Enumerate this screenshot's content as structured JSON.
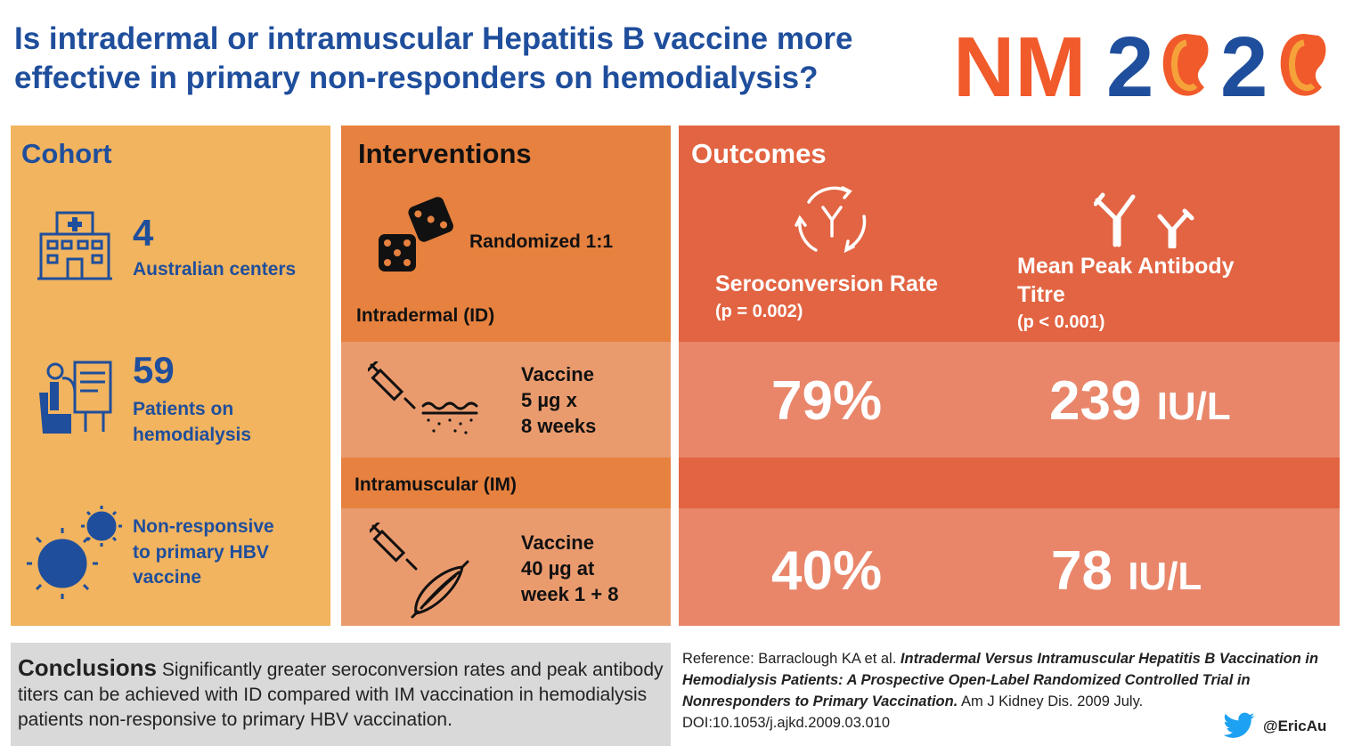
{
  "header": {
    "title_line1": "Is intradermal or intramuscular Hepatitis B vaccine more",
    "title_line2": "effective in primary non-responders on hemodialysis?",
    "logo_text": "NM2020"
  },
  "colors": {
    "title_blue": "#1f4e9c",
    "cohort_bg": "#f2b45e",
    "interventions_bg": "#e6813f",
    "outcomes_bg": "#e26442",
    "logo_orange": "#f15a2b"
  },
  "cohort": {
    "heading": "Cohort",
    "items": [
      {
        "icon": "hospital-icon",
        "number": "4",
        "label": "Australian centers"
      },
      {
        "icon": "hemodialysis-patient-icon",
        "number": "59",
        "label_line1": "Patients on",
        "label_line2": "hemodialysis"
      },
      {
        "icon": "virus-icon",
        "label_line1": "Non-responsive",
        "label_line2": "to primary HBV",
        "label_line3": "vaccine"
      }
    ]
  },
  "interventions": {
    "heading": "Interventions",
    "randomization": "Randomized 1:1",
    "id_label": "Intradermal (ID)",
    "id_vaccine": {
      "line1": "Vaccine",
      "line2": "5 µg x",
      "line3": "8 weeks"
    },
    "im_label": "Intramuscular (IM)",
    "im_vaccine": {
      "line1": "Vaccine",
      "line2": "40 µg at",
      "line3": "week 1 + 8"
    }
  },
  "outcomes": {
    "heading": "Outcomes",
    "seroconversion": {
      "title": "Seroconversion Rate",
      "p": "(p = 0.002)",
      "id_value": "79%",
      "im_value": "40%"
    },
    "titre": {
      "title_line1": "Mean Peak Antibody",
      "title_line2": "Titre",
      "p": "(p < 0.001)",
      "id_value": "239",
      "im_value": "78",
      "unit": "IU/L"
    }
  },
  "conclusions": {
    "heading": "Conclusions",
    "text": "Significantly greater seroconversion rates and peak antibody titers can be achieved with ID compared with IM vaccination in hemodialysis patients non-responsive to primary HBV vaccination."
  },
  "reference": {
    "prefix": "Reference: Barraclough KA et al.",
    "title": "Intradermal Versus Intramuscular Hepatitis B Vaccination in Hemodialysis Patients: A Prospective Open-Label Randomized Controlled Trial in Nonresponders to Primary Vaccination.",
    "suffix": "Am J Kidney Dis. 2009 July. DOI:10.1053/j.ajkd.2009.03.010"
  },
  "social": {
    "icon": "twitter-icon",
    "handle": "@EricAu"
  }
}
